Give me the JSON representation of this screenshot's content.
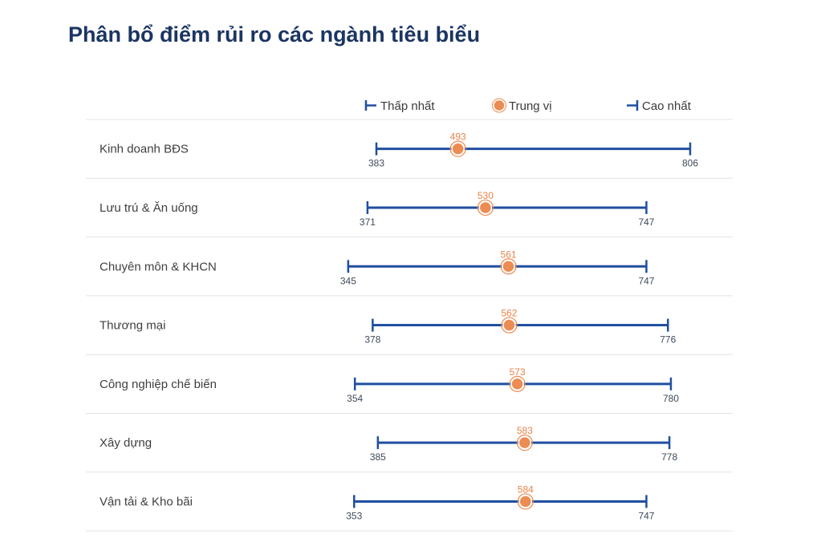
{
  "title": "Phân bổ điểm rủi ro các ngành tiêu biểu",
  "legend": {
    "min_label": "Thấp nhất",
    "median_label": "Trung vị",
    "max_label": "Cao nhất",
    "placement": "top-right"
  },
  "colors": {
    "range": "#1f4fa1",
    "median": "#ec8b52",
    "median_text": "#e8834a",
    "title": "#1b3563",
    "divider": "#e3e3e3"
  },
  "chart_data": {
    "type": "dumbbell",
    "x_range": [
      300,
      850
    ],
    "grid": false,
    "categories": [
      "Kinh doanh BĐS",
      "Lưu trú & Ăn uống",
      "Chuyên môn & KHCN",
      "Thương mại",
      "Công nghiệp chế biến",
      "Xây dựng",
      "Vận tải & Kho bãi"
    ],
    "min": [
      383,
      371,
      345,
      378,
      354,
      385,
      353
    ],
    "median": [
      493,
      530,
      561,
      562,
      573,
      583,
      584
    ],
    "max": [
      806,
      747,
      747,
      776,
      780,
      778,
      747
    ]
  }
}
